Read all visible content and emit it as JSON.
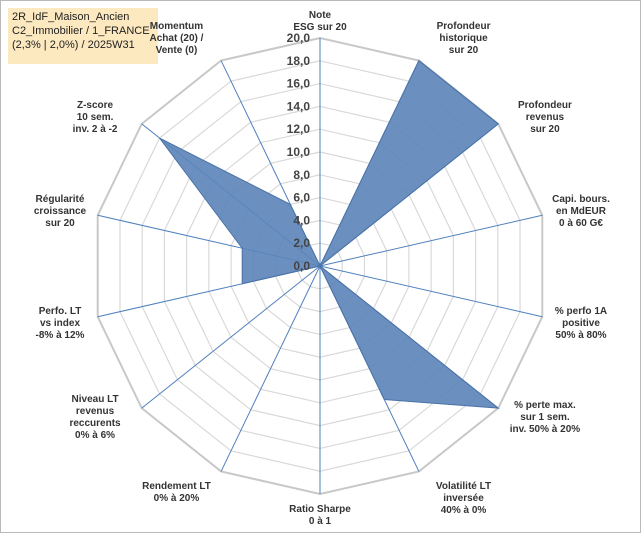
{
  "info": {
    "line1": "2R_IdF_Maison_Ancien",
    "line2": "C2_Immobilier / 1_FRANCE",
    "line3": "(2,3% | 2,0%) / 2025W31"
  },
  "colors": {
    "fill": "#5b84b8",
    "stroke": "#4a72a8",
    "spoke": "#4f81bd",
    "grid_outer": "#c8c8c8",
    "grid_inner": "#d9d9d9"
  },
  "chart_data": {
    "type": "radar",
    "title": "",
    "rlim": [
      0,
      20
    ],
    "ticks": [
      "0,0",
      "2,0",
      "4,0",
      "6,0",
      "8,0",
      "10,0",
      "12,0",
      "14,0",
      "16,0",
      "18,0",
      "20,0"
    ],
    "axes": [
      {
        "label": [
          "Note",
          "ESG sur 20"
        ],
        "value": 0
      },
      {
        "label": [
          "Profondeur",
          "historique",
          "sur 20"
        ],
        "value": 20
      },
      {
        "label": [
          "Profondeur",
          "revenus",
          "sur 20"
        ],
        "value": 20
      },
      {
        "label": [
          "Capi. bours.",
          "en MdEUR",
          "0 à 60 G€"
        ],
        "value": 0
      },
      {
        "label": [
          "% perfo 1A",
          "positive",
          "50% à 80%"
        ],
        "value": 0
      },
      {
        "label": [
          "% perte max.",
          "sur 1 sem.",
          "inv. 50% à 20%"
        ],
        "value": 20
      },
      {
        "label": [
          "Volatilité LT",
          "inversée",
          "40% à 0%"
        ],
        "value": 13
      },
      {
        "label": [
          "Ratio Sharpe",
          "0 à 1"
        ],
        "value": 0
      },
      {
        "label": [
          "Rendement LT",
          "0% à 20%"
        ],
        "value": 0
      },
      {
        "label": [
          "Niveau LT",
          "revenus",
          "reccurents",
          "0% à 6%"
        ],
        "value": 0
      },
      {
        "label": [
          "Perfo. LT",
          "vs index",
          "-8% à 12%"
        ],
        "value": 7
      },
      {
        "label": [
          "Régularité",
          "croissance",
          "sur 20"
        ],
        "value": 7
      },
      {
        "label": [
          "Z-score",
          "10 sem.",
          "inv. 2 à -2"
        ],
        "value": 18
      },
      {
        "label": [
          "Momentum",
          "Achat (20) /",
          "Vente (0)"
        ],
        "value": 6
      }
    ]
  }
}
